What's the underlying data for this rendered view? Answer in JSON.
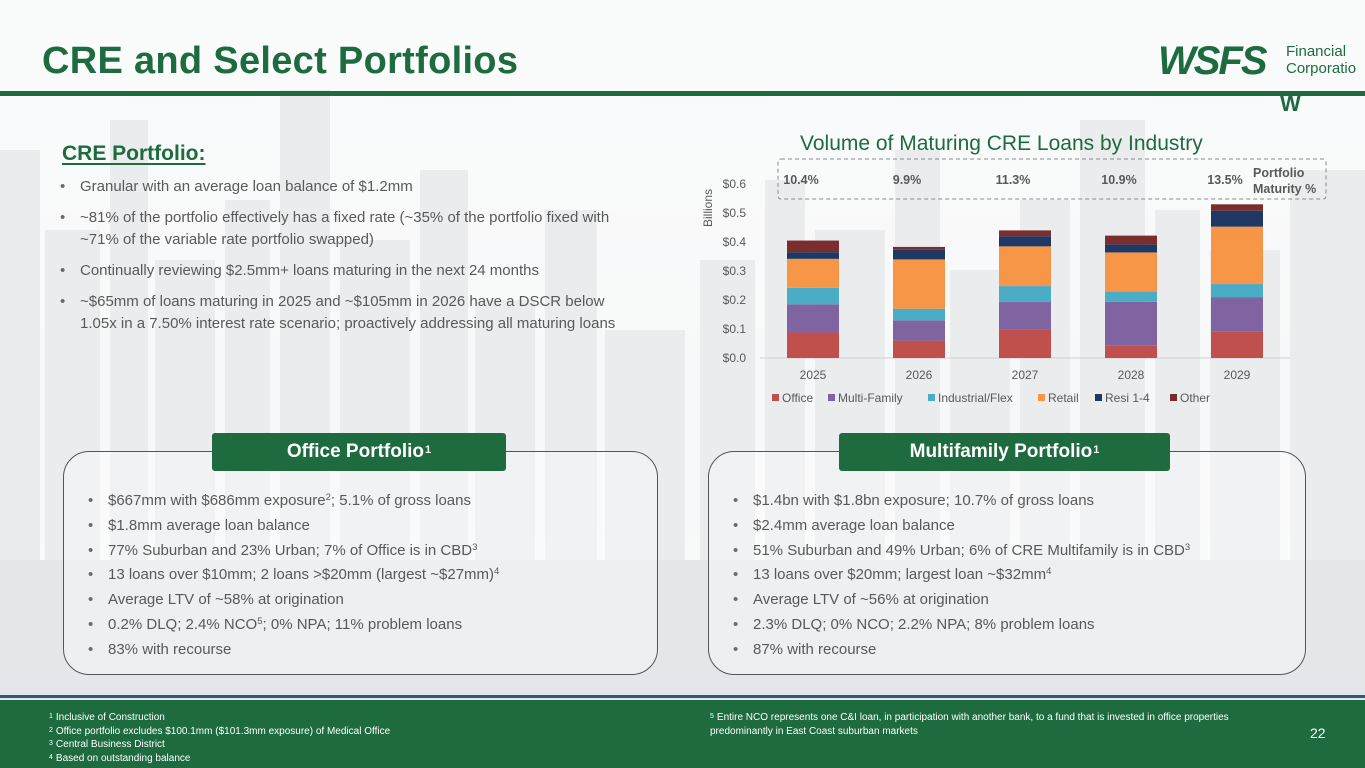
{
  "header": {
    "title": "CRE and Select Portfolios",
    "logo": {
      "wordmark": "WSFS",
      "line1": "Financial",
      "line2": "Corporation",
      "monogram": "W"
    }
  },
  "cre_portfolio": {
    "heading": "CRE Portfolio:",
    "bullets": [
      "Granular with an average loan balance of $1.2mm",
      "~81% of the portfolio effectively has a fixed rate (~35% of the portfolio fixed with ~71% of the variable rate portfolio swapped)",
      "Continually reviewing $2.5mm+ loans maturing in the next 24 months",
      "~$65mm of loans maturing in 2025 and ~$105mm in 2026 have a DSCR below 1.05x in a 7.50% interest rate scenario; proactively addressing all maturing loans"
    ]
  },
  "chart_data": {
    "type": "bar",
    "stacked": true,
    "title": "Volume of Maturing CRE Loans by Industry",
    "ylabel": "Billions",
    "ylim": [
      0,
      0.6
    ],
    "y_ticks": [
      "$0.0",
      "$0.1",
      "$0.2",
      "$0.3",
      "$0.4",
      "$0.5",
      "$0.6"
    ],
    "categories": [
      "2025",
      "2026",
      "2027",
      "2028",
      "2029"
    ],
    "series": [
      {
        "name": "Office",
        "color": "#c0504d",
        "values": [
          0.088,
          0.06,
          0.098,
          0.042,
          0.092
        ]
      },
      {
        "name": "Multi-Family",
        "color": "#8064a2",
        "values": [
          0.097,
          0.07,
          0.095,
          0.152,
          0.118
        ]
      },
      {
        "name": "Industrial/Flex",
        "color": "#4bacc6",
        "values": [
          0.057,
          0.04,
          0.055,
          0.035,
          0.045
        ]
      },
      {
        "name": "Retail",
        "color": "#f79646",
        "values": [
          0.1,
          0.17,
          0.137,
          0.135,
          0.198
        ]
      },
      {
        "name": "Resi 1-4",
        "color": "#1f3864",
        "values": [
          0.023,
          0.033,
          0.035,
          0.028,
          0.055
        ]
      },
      {
        "name": "Other",
        "color": "#7b2c2c",
        "values": [
          0.04,
          0.01,
          0.02,
          0.03,
          0.022
        ]
      }
    ],
    "maturity_label": "Portfolio Maturity %",
    "maturity_pct": [
      "10.4%",
      "9.9%",
      "11.3%",
      "10.9%",
      "13.5%"
    ],
    "legend": "bottom"
  },
  "office_portfolio": {
    "title": "Office Portfolio",
    "title_sup": "1",
    "bullets": [
      {
        "text": "$667mm with $686mm exposure",
        "sup": "2",
        "rest": "; 5.1% of gross loans"
      },
      {
        "text": "$1.8mm average loan balance"
      },
      {
        "text": "77% Suburban and 23% Urban; 7% of Office is in CBD",
        "sup": "3"
      },
      {
        "text": "13 loans over $10mm; 2 loans >$20mm (largest ~$27mm)",
        "sup": "4"
      },
      {
        "text": "Average LTV of ~58% at origination"
      },
      {
        "text": "0.2% DLQ; 2.4% NCO",
        "sup": "5",
        "rest": "; 0% NPA; 11% problem loans"
      },
      {
        "text": "83% with recourse"
      }
    ]
  },
  "multifamily_portfolio": {
    "title": "Multifamily Portfolio",
    "title_sup": "1",
    "bullets": [
      {
        "text": "$1.4bn with $1.8bn exposure; 10.7% of gross loans"
      },
      {
        "text": "$2.4mm average loan balance"
      },
      {
        "text": "51% Suburban and 49% Urban; 6% of CRE Multifamily is in CBD",
        "sup": "3"
      },
      {
        "text": "13 loans over $20mm; largest loan ~$32mm",
        "sup": "4"
      },
      {
        "text": "Average LTV of ~56% at origination"
      },
      {
        "text": "2.3% DLQ; 0% NCO; 2.2% NPA; 8% problem loans"
      },
      {
        "text": "87% with recourse"
      }
    ]
  },
  "footnotes": {
    "left": [
      {
        "num": "1",
        "text": "Inclusive of Construction"
      },
      {
        "num": "2",
        "text": "Office portfolio excludes $100.1mm ($101.3mm exposure) of Medical Office"
      },
      {
        "num": "3",
        "text": "Central Business District"
      },
      {
        "num": "4",
        "text": "Based on outstanding balance"
      }
    ],
    "right": [
      {
        "num": "5",
        "text": "Entire NCO represents one C&I loan, in participation with another bank, to a fund that is invested in office properties predominantly in East Coast suburban markets"
      }
    ]
  },
  "page_number": "22"
}
